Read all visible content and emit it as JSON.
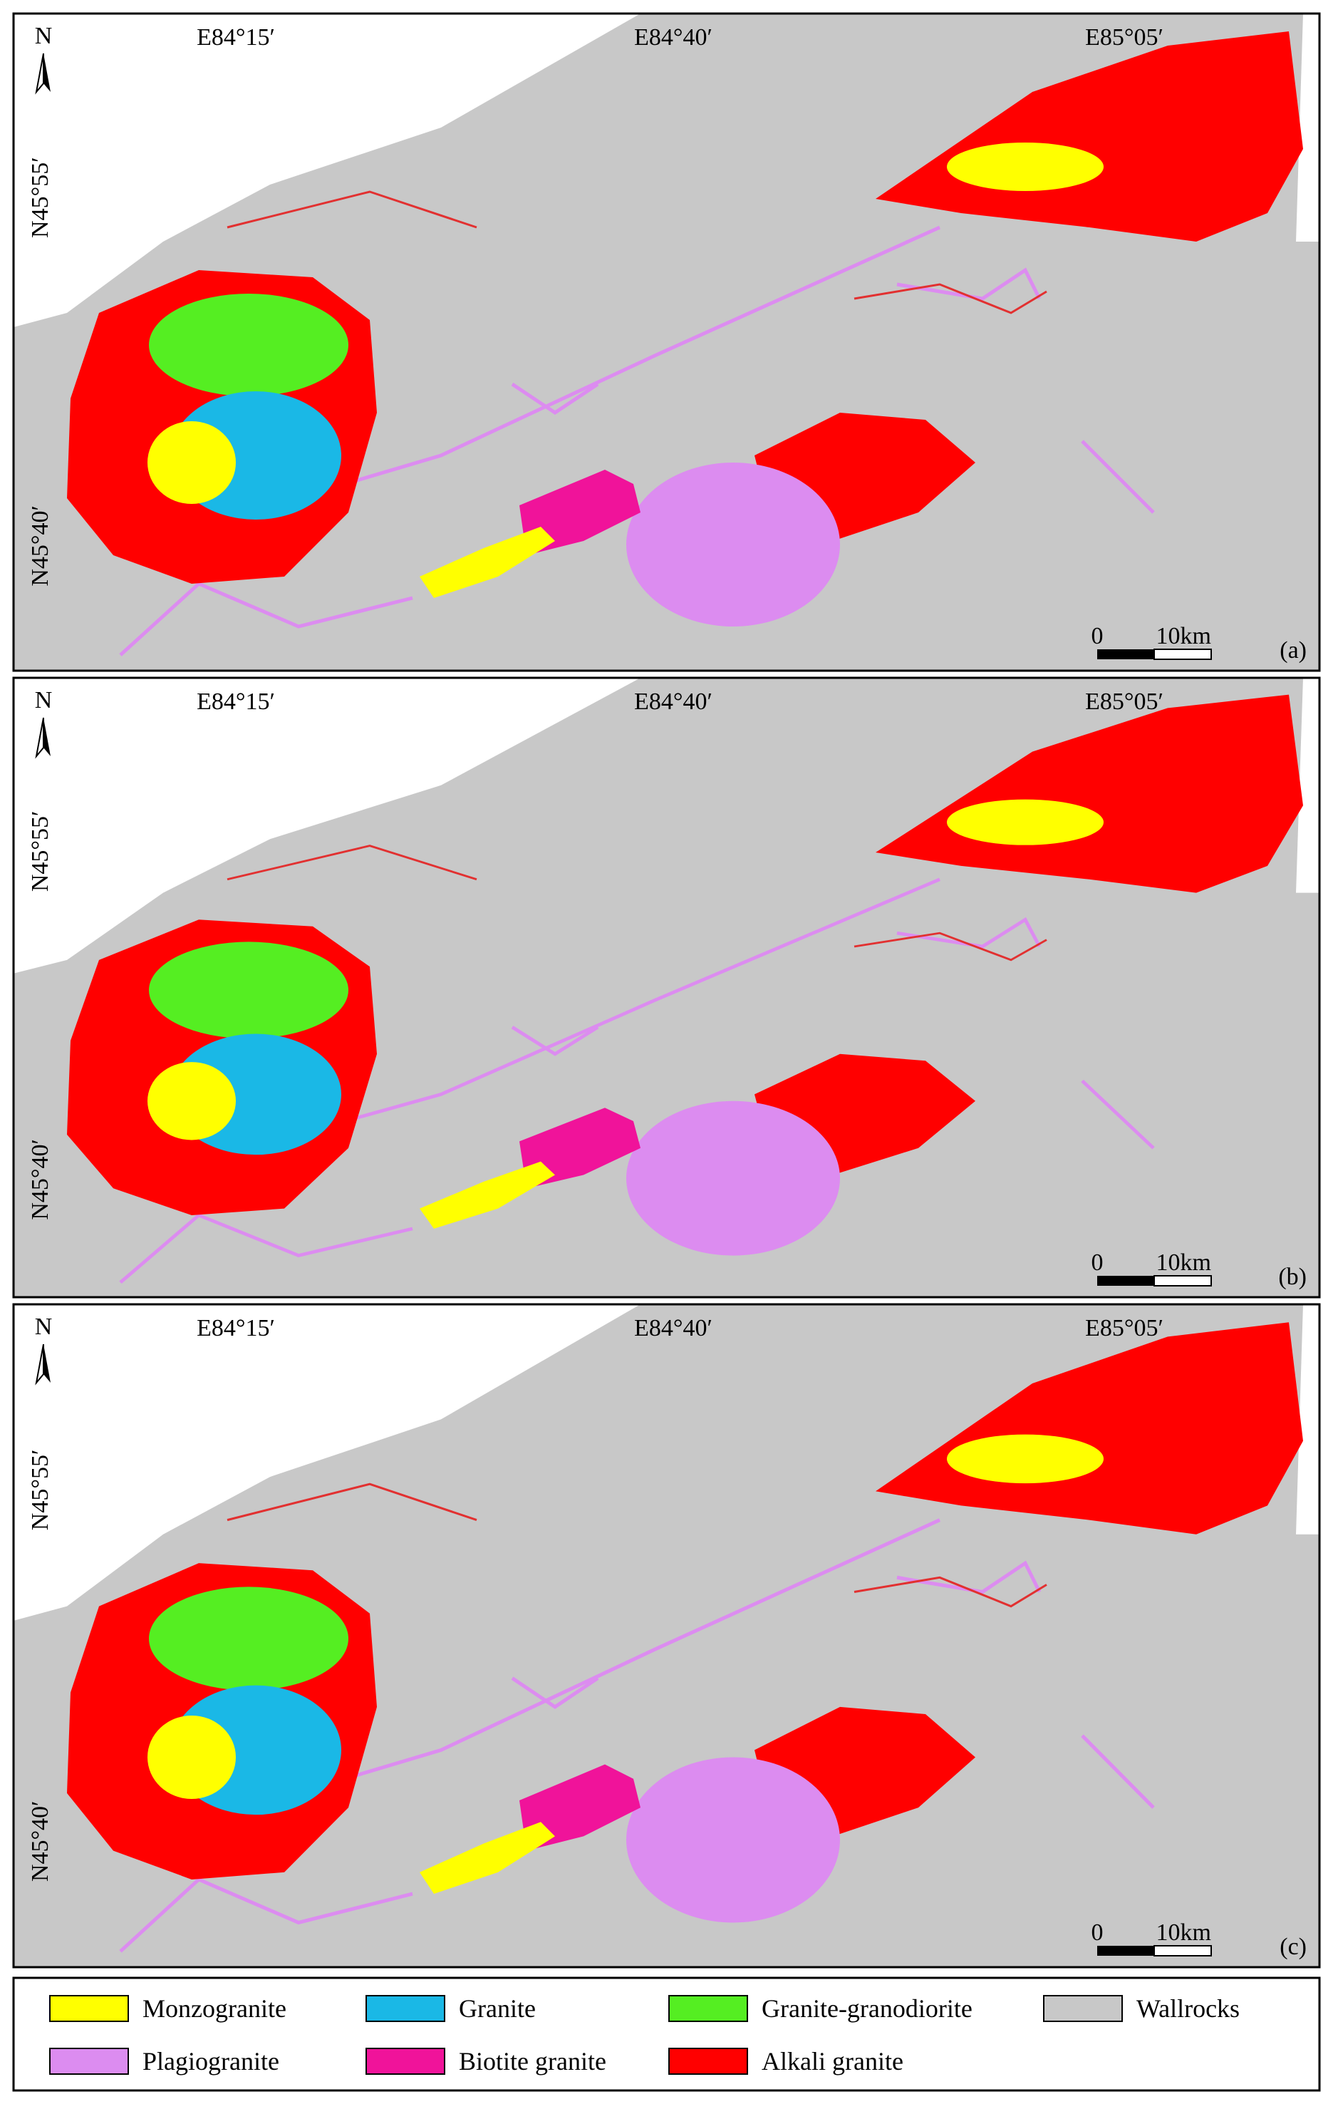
{
  "panels": [
    {
      "label": "(a)",
      "north": "N",
      "longitudes": [
        "E84°15′",
        "E84°40′",
        "E85°05′"
      ],
      "latitudes": [
        "N45°55′",
        "N45°40′"
      ],
      "scale": {
        "start": "0",
        "end": "10km"
      }
    },
    {
      "label": "(b)",
      "north": "N",
      "longitudes": [
        "E84°15′",
        "E84°40′",
        "E85°05′"
      ],
      "latitudes": [
        "N45°55′",
        "N45°40′"
      ],
      "scale": {
        "start": "0",
        "end": "10km"
      }
    },
    {
      "label": "(c)",
      "north": "N",
      "longitudes": [
        "E84°15′",
        "E84°40′",
        "E85°05′"
      ],
      "latitudes": [
        "N45°55′",
        "N45°40′"
      ],
      "scale": {
        "start": "0",
        "end": "10km"
      }
    }
  ],
  "legend": [
    {
      "label": "Monzogranite",
      "color": "#ffff00"
    },
    {
      "label": "Granite",
      "color": "#1ab8e6"
    },
    {
      "label": "Granite-granodiorite",
      "color": "#55ee22"
    },
    {
      "label": "Wallrocks",
      "color": "#c8c8c8"
    },
    {
      "label": "Plagiogranite",
      "color": "#dc8cf0"
    },
    {
      "label": "Biotite granite",
      "color": "#f0139a"
    },
    {
      "label": "Alkali granite",
      "color": "#ff0000"
    }
  ]
}
